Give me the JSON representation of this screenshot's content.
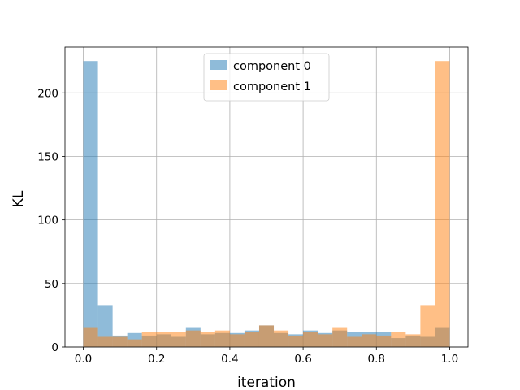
{
  "chart_data": {
    "type": "bar",
    "subtype": "overlaid-histogram",
    "title": "",
    "xlabel": "iteration",
    "ylabel": "KL",
    "xlim": [
      -0.05,
      1.05
    ],
    "ylim": [
      0,
      236
    ],
    "xticks": [
      "0.0",
      "0.2",
      "0.4",
      "0.6",
      "0.8",
      "1.0"
    ],
    "yticks": [
      "0",
      "50",
      "100",
      "150",
      "200"
    ],
    "grid": true,
    "legend_position": "top-center",
    "bin_edges": [
      0.0,
      0.04,
      0.08,
      0.12,
      0.16,
      0.2,
      0.24,
      0.28,
      0.32,
      0.36,
      0.4,
      0.44,
      0.48,
      0.52,
      0.56,
      0.6,
      0.64,
      0.68,
      0.72,
      0.76,
      0.8,
      0.84,
      0.88,
      0.92,
      0.96,
      1.0
    ],
    "series": [
      {
        "name": "component 0",
        "color": "#1f77b4",
        "alpha": 0.5,
        "values": [
          225,
          33,
          9,
          11,
          9,
          10,
          8,
          15,
          10,
          11,
          11,
          13,
          17,
          11,
          10,
          13,
          11,
          13,
          12,
          12,
          12,
          7,
          9,
          8,
          15
        ]
      },
      {
        "name": "component 1",
        "color": "#ff7f0e",
        "alpha": 0.5,
        "values": [
          15,
          8,
          8,
          6,
          12,
          12,
          12,
          13,
          12,
          13,
          10,
          12,
          17,
          13,
          9,
          12,
          10,
          15,
          8,
          10,
          9,
          12,
          10,
          33,
          225
        ]
      }
    ]
  }
}
